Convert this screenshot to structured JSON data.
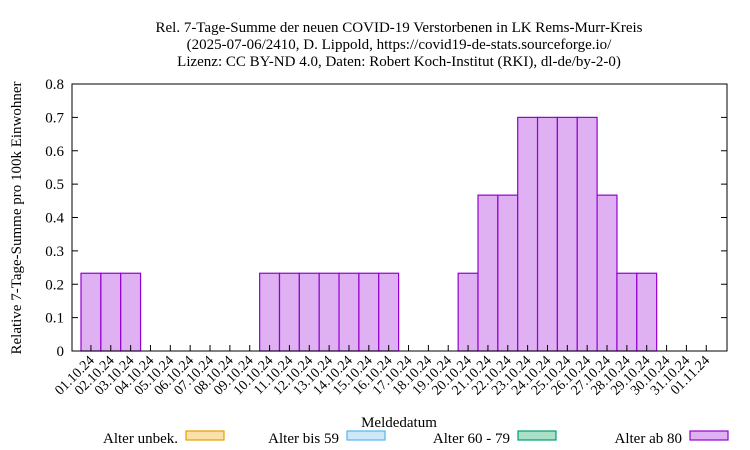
{
  "chart_data": {
    "type": "bar",
    "title_lines": [
      "Rel. 7-Tage-Summe der neuen COVID-19 Verstorbenen in LK Rems-Murr-Kreis",
      "(2025-07-06/2410, D. Lippold, https://covid19-de-stats.sourceforge.io/",
      "Lizenz: CC BY-ND 4.0, Daten: Robert Koch-Institut (RKI), dl-de/by-2-0)"
    ],
    "xlabel": "Meldedatum",
    "ylabel": "Relative 7-Tage-Summe pro 100k Einwohner",
    "ylim": [
      0,
      0.8
    ],
    "yticks": [
      "0",
      "0.1",
      "0.2",
      "0.3",
      "0.4",
      "0.5",
      "0.6",
      "0.7",
      "0.8"
    ],
    "categories": [
      "01.10.24",
      "02.10.24",
      "03.10.24",
      "04.10.24",
      "05.10.24",
      "06.10.24",
      "07.10.24",
      "08.10.24",
      "09.10.24",
      "10.10.24",
      "11.10.24",
      "12.10.24",
      "13.10.24",
      "14.10.24",
      "15.10.24",
      "16.10.24",
      "17.10.24",
      "18.10.24",
      "19.10.24",
      "20.10.24",
      "21.10.24",
      "22.10.24",
      "23.10.24",
      "24.10.24",
      "25.10.24",
      "26.10.24",
      "27.10.24",
      "28.10.24",
      "29.10.24",
      "30.10.24",
      "31.10.24",
      "01.11.24"
    ],
    "series": [
      {
        "name": "Alter unbek.",
        "color": "#e69f00",
        "fill": "#fbe0a8",
        "values": [
          0,
          0,
          0,
          0,
          0,
          0,
          0,
          0,
          0,
          0,
          0,
          0,
          0,
          0,
          0,
          0,
          0,
          0,
          0,
          0,
          0,
          0,
          0,
          0,
          0,
          0,
          0,
          0,
          0,
          0,
          0,
          0
        ]
      },
      {
        "name": "Alter bis 59",
        "color": "#56b4e9",
        "fill": "#cde8f8",
        "values": [
          0,
          0,
          0,
          0,
          0,
          0,
          0,
          0,
          0,
          0,
          0,
          0,
          0,
          0,
          0,
          0,
          0,
          0,
          0,
          0,
          0,
          0,
          0,
          0,
          0,
          0,
          0,
          0,
          0,
          0,
          0,
          0
        ]
      },
      {
        "name": "Alter 60 - 79",
        "color": "#009e73",
        "fill": "#a8e0c8",
        "values": [
          0,
          0,
          0,
          0,
          0,
          0,
          0,
          0,
          0,
          0,
          0,
          0,
          0,
          0,
          0,
          0,
          0,
          0,
          0,
          0,
          0,
          0,
          0,
          0,
          0,
          0,
          0,
          0,
          0,
          0,
          0,
          0
        ]
      },
      {
        "name": "Alter ab 80",
        "color": "#9400d3",
        "fill": "#dfb0f2",
        "values": [
          0.233,
          0.233,
          0.233,
          0,
          0,
          0,
          0,
          0,
          0,
          0.233,
          0.233,
          0.233,
          0.233,
          0.233,
          0.233,
          0.233,
          0,
          0,
          0,
          0.233,
          0.467,
          0.467,
          0.7,
          0.7,
          0.7,
          0.7,
          0.467,
          0.233,
          0.233,
          0,
          0,
          0
        ]
      }
    ],
    "legend_position": "bottom",
    "grid": false
  }
}
